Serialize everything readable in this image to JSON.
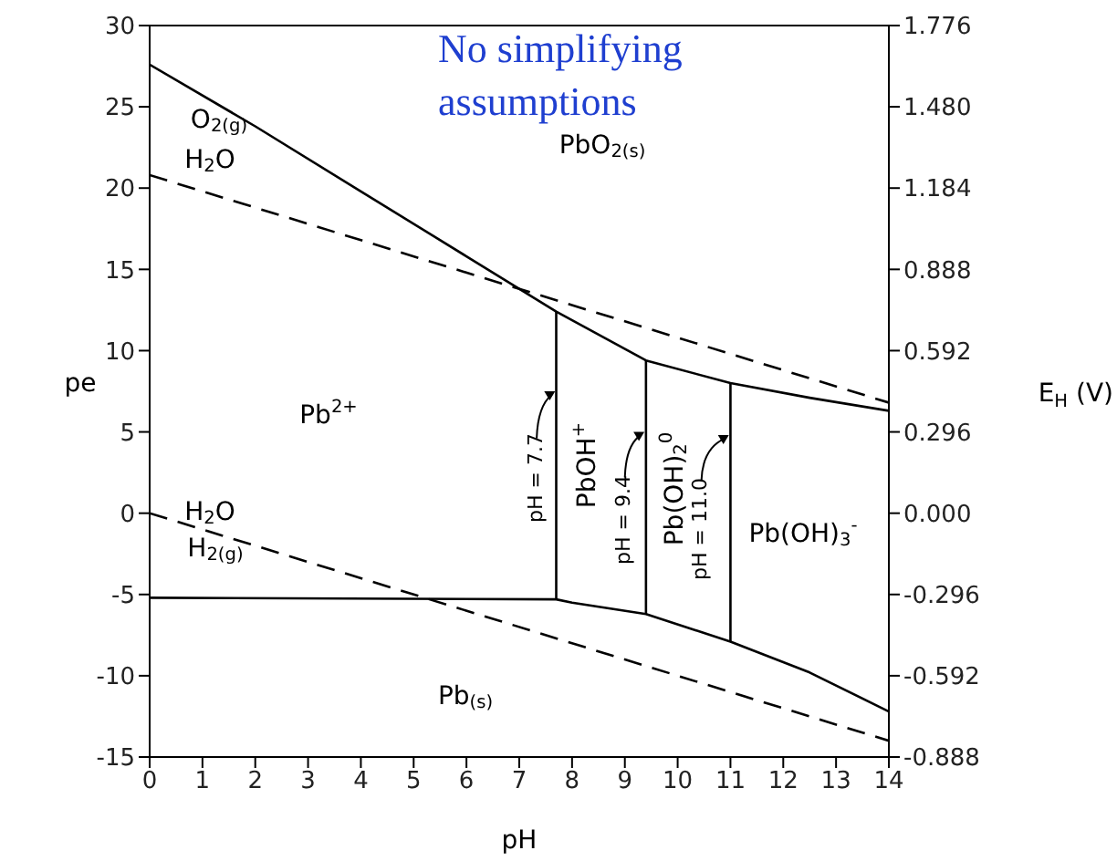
{
  "chart_data": {
    "type": "line",
    "xlabel": "pH",
    "ylabel": "pe",
    "y2label": "E$_{H}$ (V)",
    "xlim": [
      0,
      14
    ],
    "xticks": [
      0,
      1,
      2,
      3,
      4,
      5,
      6,
      7,
      8,
      9,
      10,
      11,
      12,
      13,
      14
    ],
    "ylim": [
      -15,
      30
    ],
    "yticks": [
      -15,
      -10,
      -5,
      0,
      5,
      10,
      15,
      20,
      25,
      30
    ],
    "y2lim": [
      -0.888,
      1.776
    ],
    "y2ticks": [
      -0.888,
      -0.592,
      -0.296,
      {
        "value": 0,
        "label": "0.000"
      },
      0.296,
      0.592,
      0.888,
      1.184,
      {
        "value": 1.48,
        "label": "1.480"
      },
      1.776
    ],
    "series": [
      {
        "color": "#000000",
        "line_style": "solid",
        "x": [
          0,
          2,
          4,
          6,
          7.7,
          9.4,
          11,
          12.5,
          14
        ],
        "values": [
          27.6,
          23.8,
          19.8,
          15.8,
          12.4,
          9.4,
          8.0,
          7.1,
          6.3
        ]
      },
      {
        "color": "#000000",
        "line_style": "dashed",
        "x": [
          0,
          14
        ],
        "values": [
          20.8,
          6.8
        ]
      },
      {
        "color": "#000000",
        "line_style": "dashed",
        "x": [
          0,
          14
        ],
        "values": [
          0,
          -14
        ]
      },
      {
        "color": "#000000",
        "line_style": "solid",
        "x": [
          0,
          7.7,
          8,
          9.4,
          11,
          12.5,
          14
        ],
        "values": [
          -5.2,
          -5.3,
          -5.5,
          -6.2,
          -7.9,
          -9.8,
          -12.2
        ]
      },
      {
        "color": "#000000",
        "line_style": "solid",
        "x": [
          7.7,
          7.7
        ],
        "values": [
          -5.3,
          12.4
        ]
      },
      {
        "color": "#000000",
        "line_style": "solid",
        "x": [
          9.4,
          9.4
        ],
        "values": [
          -6.2,
          9.4
        ]
      },
      {
        "color": "#000000",
        "line_style": "solid",
        "x": [
          11,
          11
        ],
        "values": [
          -7.9,
          8.0
        ]
      }
    ],
    "annotations": [
      "No simplifying assumptions",
      "PbO$_{2(s)}$",
      "Pb$^{2+}$",
      "Pb$_{(s)}$",
      "O$_{2(g)}$",
      "H$_{2}$O",
      "H$_{2}$O",
      "H$_{2(g)}$",
      "pH = 7.7",
      "PbOH$^{+}$",
      "pH = 9.4",
      "Pb(OH)$_{2}$$^{0}$",
      "pH = 11.0",
      "Pb(OH)$_{3}$$^{-}$"
    ]
  }
}
